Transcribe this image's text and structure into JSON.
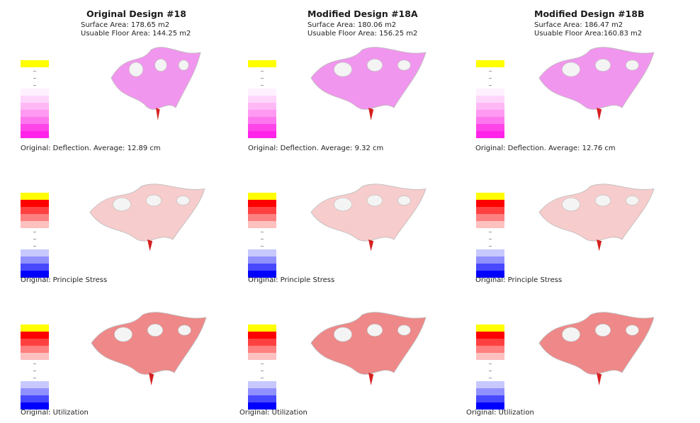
{
  "designs": [
    {
      "title": "Original Design #18",
      "surface_area": "Surface Area: 178.65 m2",
      "floor_area": "Usuable Floor Area: 144.25 m2",
      "captions": [
        "Original: Deflection. Average: 12.89 cm",
        "Original: Principle Stress",
        "Original: Utilization"
      ]
    },
    {
      "title": "Modified Design #18A",
      "surface_area": "Surface Area: 180.06 m2",
      "floor_area": "Usuable Floor Area: 156.25 m2",
      "captions": [
        "Original: Deflection. Average: 9.32 cm",
        "Original: Principle Stress",
        "Original: Utilization"
      ]
    },
    {
      "title": "Modified Design #18B",
      "surface_area": "Surface Area: 186.47 m2",
      "floor_area": "Usuable Floor Area:160.83 m2",
      "captions": [
        "Original: Deflection. Average: 12.76 cm",
        "Original: Principle Stress",
        "Original: Utilization"
      ]
    }
  ],
  "legend_colors": {
    "deflection": [
      "#ffff00",
      "#ffffff",
      "#ffffff",
      "#ffffff",
      "#fff0ff",
      "#ffd6fb",
      "#ffb8f6",
      "#ff99f2",
      "#ff77ee",
      "#ff44ea",
      "#ff22e8"
    ],
    "stress": [
      "#ffff00",
      "#ff0000",
      "#ff4040",
      "#ff8080",
      "#ffc0c0",
      "#ffffff",
      "#ffffff",
      "#ffffff",
      "#c8c8ff",
      "#9090ff",
      "#4848ff",
      "#0000ff"
    ],
    "utilization": [
      "#ffff00",
      "#ff0000",
      "#ff4040",
      "#ff8080",
      "#ffc0c0",
      "#ffffff",
      "#ffffff",
      "#ffffff",
      "#c8c8ff",
      "#9090ff",
      "#4848ff",
      "#0000ff"
    ]
  },
  "surface_colors": {
    "deflection": "#e640e0",
    "stress": "#f3b6b6",
    "utilization": "#e85555"
  }
}
